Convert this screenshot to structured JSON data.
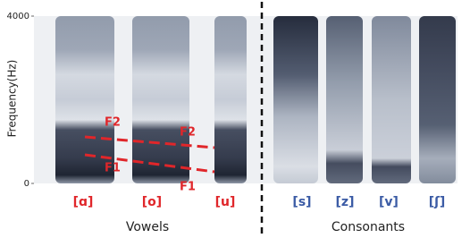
{
  "chart_data": {
    "type": "spectrogram",
    "ylabel": "Frequency(Hz)",
    "ylim": [
      0,
      4000
    ],
    "yticks": [
      0,
      4000
    ],
    "groups": [
      {
        "name": "Vowels",
        "color": "#e0262a",
        "segments": [
          "[ɑ]",
          "[o]",
          "[u]"
        ]
      },
      {
        "name": "Consonants",
        "color": "#3b5ba5",
        "segments": [
          "[s]",
          "[z]",
          "[v]",
          "[ʃ]"
        ]
      }
    ],
    "annotations": [
      "F2",
      "F1",
      "F2",
      "F1"
    ]
  }
}
